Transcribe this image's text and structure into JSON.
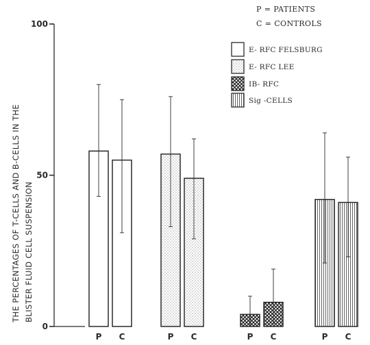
{
  "chart_data": {
    "type": "bar",
    "title": "",
    "xlabel": "",
    "ylabel_line1": "THE PERCENTAGES OF T-CELLS AND B-CELLS IN THE",
    "ylabel_line2": "BLISTER FLUID CELL SUSPENSION",
    "ylim": [
      0,
      100
    ],
    "yticks": [
      {
        "value": 0,
        "label": "0"
      },
      {
        "value": 50,
        "label": "50"
      },
      {
        "value": 100,
        "label": "100"
      }
    ],
    "groups": [
      {
        "name": "E- RFC FELSBURG",
        "pattern": "plain",
        "bars": [
          {
            "label": "P",
            "value": 58,
            "upper": 80,
            "lower": 43
          },
          {
            "label": "C",
            "value": 55,
            "upper": 75,
            "lower": 31
          }
        ]
      },
      {
        "name": "E- RFC LEE",
        "pattern": "dotted",
        "bars": [
          {
            "label": "P",
            "value": 57,
            "upper": 76,
            "lower": 33
          },
          {
            "label": "C",
            "value": 49,
            "upper": 62,
            "lower": 29
          }
        ]
      },
      {
        "name": "IB- RFC",
        "pattern": "crosshatch",
        "bars": [
          {
            "label": "P",
            "value": 4,
            "upper": 10,
            "lower": 0
          },
          {
            "label": "C",
            "value": 8,
            "upper": 19,
            "lower": 1
          }
        ]
      },
      {
        "name": "Sig -CELLS",
        "pattern": "vertical",
        "bars": [
          {
            "label": "P",
            "value": 42,
            "upper": 64,
            "lower": 21
          },
          {
            "label": "C",
            "value": 41,
            "upper": 56,
            "lower": 23
          }
        ]
      }
    ],
    "legend": {
      "placement": "top-right",
      "key_lines": [
        "P = PATIENTS",
        "C = CONTROLS"
      ],
      "entries": [
        {
          "label": "E- RFC FELSBURG",
          "pattern": "plain"
        },
        {
          "label": "E- RFC LEE",
          "pattern": "dotted"
        },
        {
          "label": "IB- RFC",
          "pattern": "crosshatch"
        },
        {
          "label": "Sig -CELLS",
          "pattern": "vertical"
        }
      ]
    },
    "grid": false,
    "colors": {
      "ink": "#2a2a2a",
      "paper": "#ffffff"
    }
  }
}
